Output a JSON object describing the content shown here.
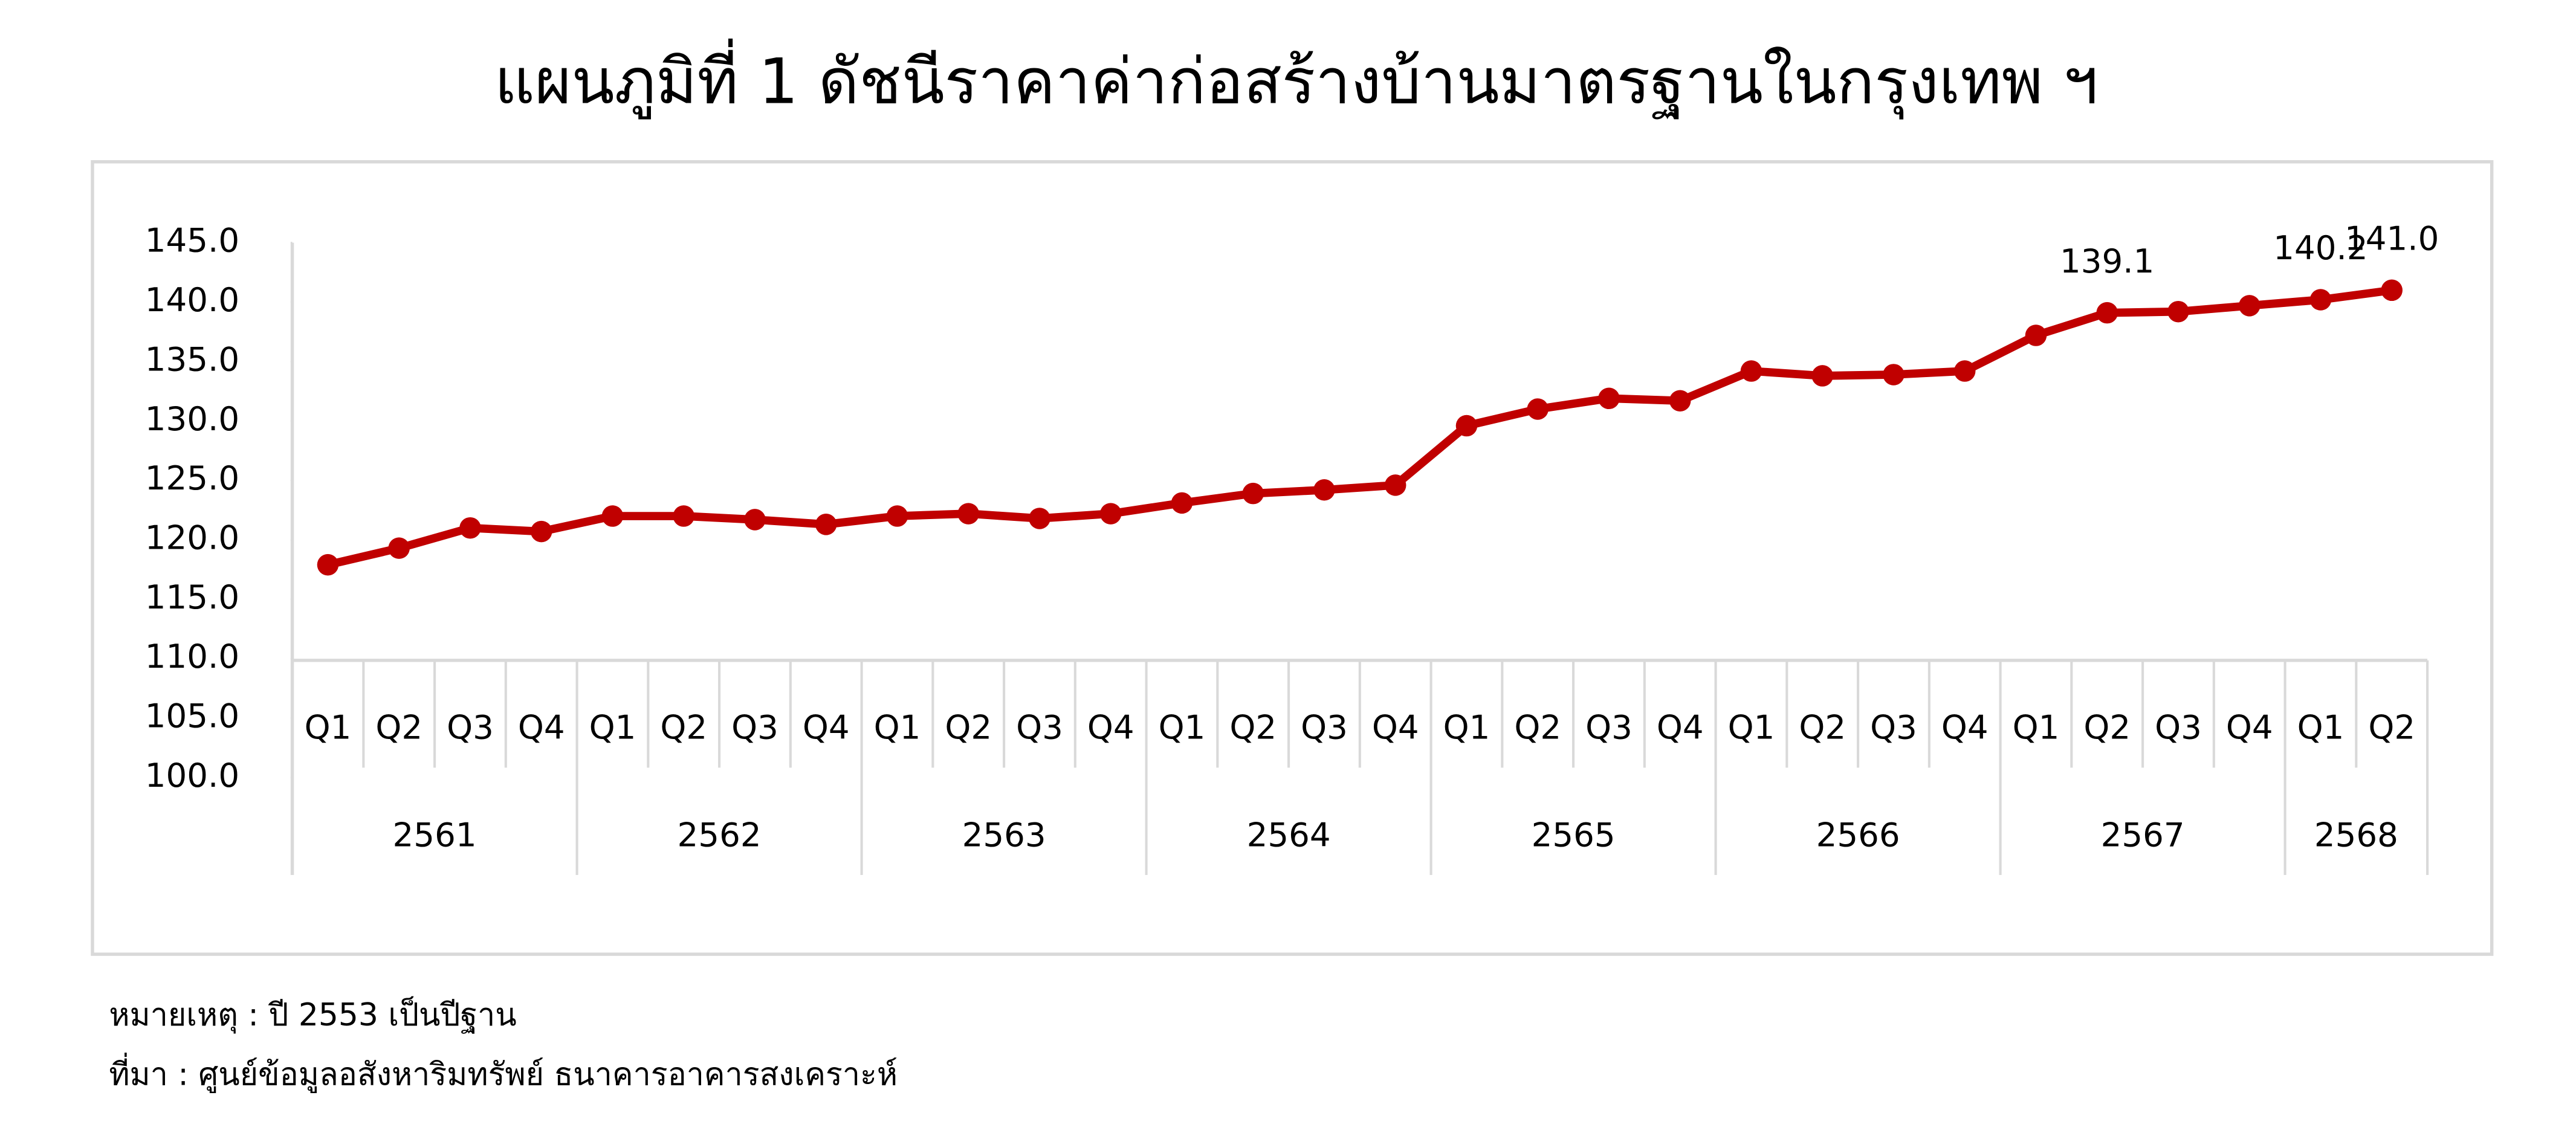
{
  "chart_data": {
    "type": "line",
    "title": "แผนภูมิที่ 1 ดัชนีราคาค่าก่อสร้างบ้านมาตรฐานในกรุงเทพ ฯ",
    "groups": [
      {
        "name": "2561",
        "categories": [
          "Q1",
          "Q2",
          "Q3",
          "Q4"
        ]
      },
      {
        "name": "2562",
        "categories": [
          "Q1",
          "Q2",
          "Q3",
          "Q4"
        ]
      },
      {
        "name": "2563",
        "categories": [
          "Q1",
          "Q2",
          "Q3",
          "Q4"
        ]
      },
      {
        "name": "2564",
        "categories": [
          "Q1",
          "Q2",
          "Q3",
          "Q4"
        ]
      },
      {
        "name": "2565",
        "categories": [
          "Q1",
          "Q2",
          "Q3",
          "Q4"
        ]
      },
      {
        "name": "2566",
        "categories": [
          "Q1",
          "Q2",
          "Q3",
          "Q4"
        ]
      },
      {
        "name": "2567",
        "categories": [
          "Q1",
          "Q2",
          "Q3",
          "Q4"
        ]
      },
      {
        "name": "2568",
        "categories": [
          "Q1",
          "Q2"
        ]
      }
    ],
    "color": "#c00000",
    "values": [
      117.9,
      119.3,
      121.0,
      120.7,
      122.0,
      122.0,
      121.7,
      121.3,
      122.0,
      122.2,
      121.8,
      122.2,
      123.1,
      123.9,
      124.2,
      124.6,
      129.6,
      131.0,
      131.9,
      131.7,
      134.2,
      133.8,
      133.9,
      134.2,
      137.2,
      139.1,
      139.2,
      139.7,
      140.2,
      141.0
    ],
    "value_labels": [
      null,
      null,
      null,
      null,
      null,
      null,
      null,
      null,
      null,
      null,
      null,
      null,
      null,
      null,
      null,
      null,
      null,
      null,
      null,
      null,
      null,
      null,
      null,
      null,
      null,
      "139.1",
      null,
      null,
      "140.2",
      "141.0"
    ],
    "ylim": [
      100,
      145
    ],
    "yticks": [
      {
        "value": 100,
        "label": "100.0"
      },
      {
        "value": 105,
        "label": "105.0"
      },
      {
        "value": 110,
        "label": "110.0"
      },
      {
        "value": 115,
        "label": "115.0"
      },
      {
        "value": 120,
        "label": "120.0"
      },
      {
        "value": 125,
        "label": "125.0"
      },
      {
        "value": 130,
        "label": "130.0"
      },
      {
        "value": 135,
        "label": "135.0"
      },
      {
        "value": 140,
        "label": "140.0"
      },
      {
        "value": 145,
        "label": "145.0"
      }
    ],
    "grid": false,
    "notes": [
      "หมายเหตุ : ปี 2553 เป็นปีฐาน",
      "ที่มา : ศูนย์ข้อมูลอสังหาริมทรัพย์ ธนาคารอาคารสงเคราะห์"
    ]
  }
}
